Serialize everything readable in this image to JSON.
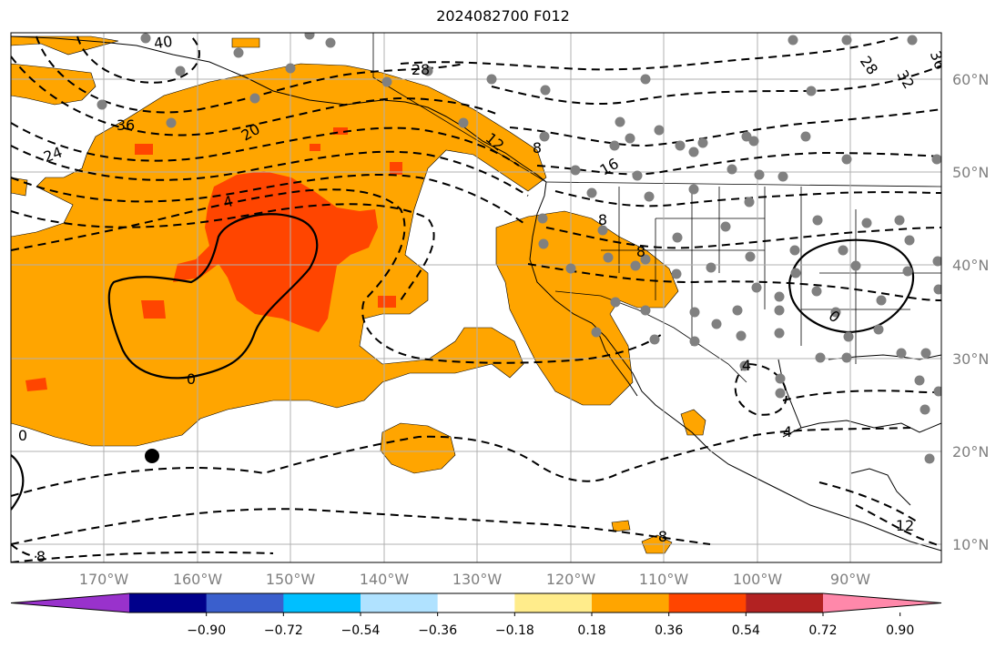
{
  "title": "2024082700 F012",
  "map": {
    "lat_labels": [
      "60°N",
      "50°N",
      "40°N",
      "30°N",
      "20°N",
      "10°N"
    ],
    "lon_labels": [
      "170°W",
      "160°W",
      "150°W",
      "140°W",
      "130°W",
      "120°W",
      "110°W",
      "100°W",
      "90°W"
    ],
    "shade_colors": {
      "orange": "#ffa500",
      "orangered": "#ff4500"
    },
    "contour_labels": [
      "40",
      "28",
      "28",
      "32",
      "36",
      "36",
      "20",
      "24",
      "16",
      "4",
      "12",
      "8",
      "8",
      "4",
      "4",
      "0",
      "0",
      "0",
      "8",
      "8",
      "12",
      "8"
    ]
  },
  "colorbar": {
    "colors": [
      "#9932cc",
      "#00008b",
      "#3a5fcd",
      "#00bfff",
      "#b0e2ff",
      "#ffffff",
      "#ffec8b",
      "#ffa500",
      "#ff4500",
      "#b22222",
      "#ff88aa"
    ],
    "tick_labels": [
      "−0.90",
      "−0.72",
      "−0.54",
      "−0.36",
      "−0.18",
      "0.18",
      "0.36",
      "0.54",
      "0.72",
      "0.90"
    ]
  }
}
